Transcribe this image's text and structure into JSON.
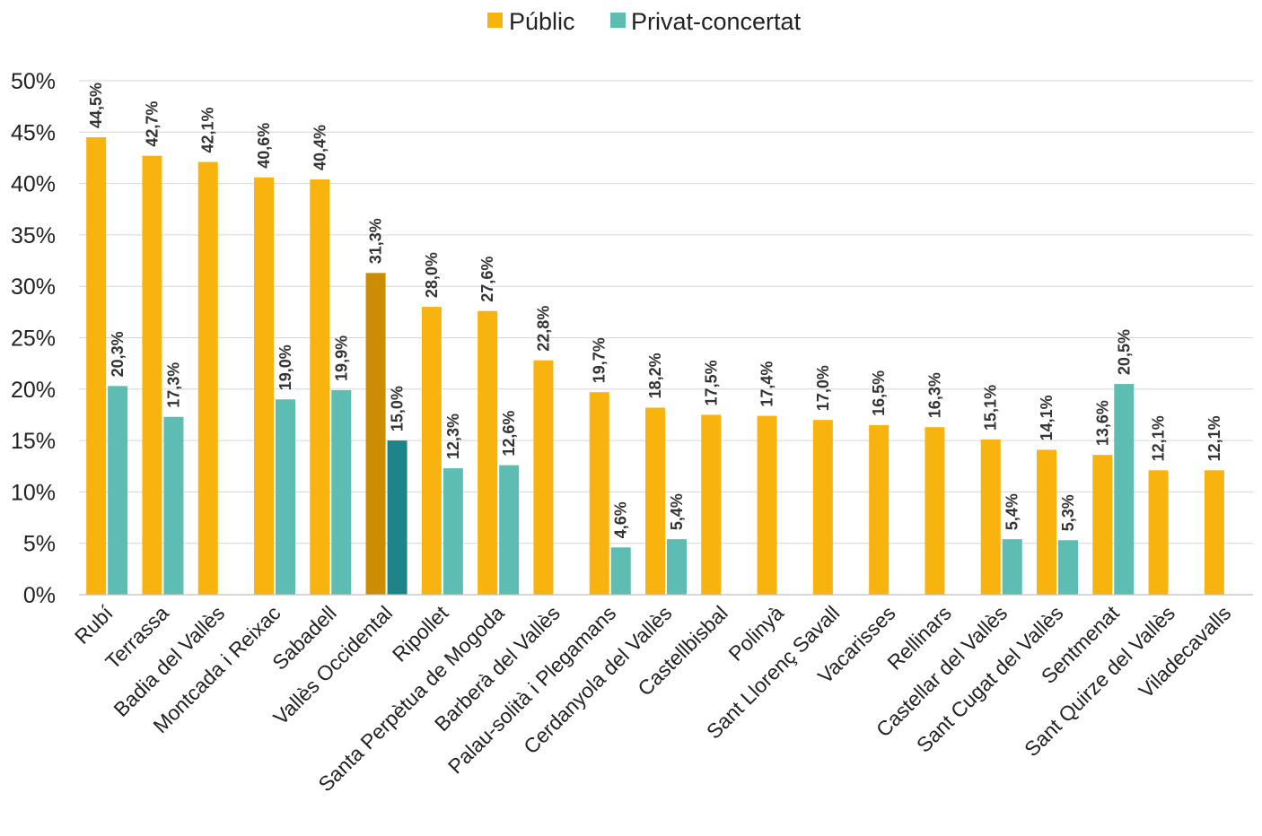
{
  "chart_data": {
    "type": "bar",
    "categories": [
      "Rubí",
      "Terrassa",
      "Badia del Vallès",
      "Montcada i Reixac",
      "Sabadell",
      "Vallès Occidental",
      "Ripollet",
      "Santa Perpètua de Mogoda",
      "Barberà del Vallès",
      "Palau-solità i Plegamans",
      "Cerdanyola del Vallès",
      "Castellbisbal",
      "Polinyà",
      "Sant Llorenç Savall",
      "Vacarisses",
      "Rellinars",
      "Castellar del Vallès",
      "Sant Cugat del Vallès",
      "Sentmenat",
      "Sant Quirze del Vallès",
      "Viladecavalls"
    ],
    "series": [
      {
        "name": "Públic",
        "color": "#F9B30E",
        "highlight_color": "#CC8D02",
        "values": [
          44.5,
          42.7,
          42.1,
          40.6,
          40.4,
          31.3,
          28.0,
          27.6,
          22.8,
          19.7,
          18.2,
          17.5,
          17.4,
          17.0,
          16.5,
          16.3,
          15.1,
          14.1,
          13.6,
          12.1,
          12.1
        ],
        "labels": [
          "44,5%",
          "42,7%",
          "42,1%",
          "40,6%",
          "40,4%",
          "31,3%",
          "28,0%",
          "27,6%",
          "22,8%",
          "19,7%",
          "18,2%",
          "17,5%",
          "17,4%",
          "17,0%",
          "16,5%",
          "16,3%",
          "15,1%",
          "14,1%",
          "13,6%",
          "12,1%",
          "12,1%"
        ]
      },
      {
        "name": "Privat-concertat",
        "color": "#5DBDB3",
        "highlight_color": "#1F8489",
        "values": [
          20.3,
          17.3,
          null,
          19.0,
          19.9,
          15.0,
          12.3,
          12.6,
          null,
          4.6,
          5.4,
          null,
          null,
          null,
          null,
          null,
          5.4,
          5.3,
          20.5,
          null,
          null
        ],
        "labels": [
          "20,3%",
          "17,3%",
          null,
          "19,0%",
          "19,9%",
          "15,0%",
          "12,3%",
          "12,6%",
          null,
          "4,6%",
          "5,4%",
          null,
          null,
          null,
          null,
          null,
          "5,4%",
          "5,3%",
          "20,5%",
          null,
          null
        ]
      }
    ],
    "highlight_category": "Vallès Occidental",
    "y_ticks": [
      "0%",
      "5%",
      "10%",
      "15%",
      "20%",
      "25%",
      "30%",
      "35%",
      "40%",
      "45%",
      "50%"
    ],
    "ylim": [
      0,
      50
    ],
    "grid": true,
    "legend_position": "top-center",
    "title": "",
    "xlabel": "",
    "ylabel": ""
  }
}
